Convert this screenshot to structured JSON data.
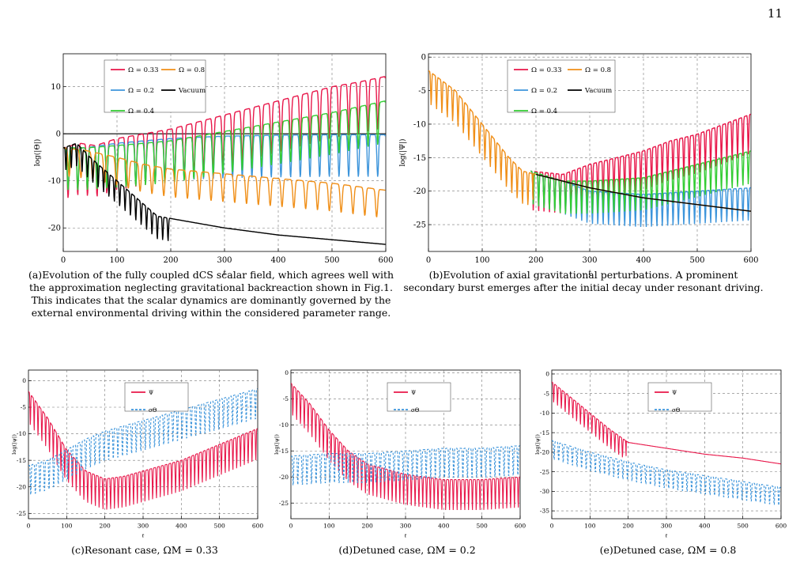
{
  "page_number": "11",
  "colors": {
    "omega_033": "#e8174a",
    "omega_02": "#3d95db",
    "omega_04": "#33cc33",
    "omega_08": "#f08f18",
    "vacuum": "#000000",
    "psi": "#e8174a",
    "sigma_theta": "#3d95db"
  },
  "captions": {
    "a": {
      "label": "(a)",
      "text": "Evolution of the fully coupled dCS scalar field, which agrees well with the approximation neglecting gravitational backreaction shown in Fig.1. This indicates that the scalar dynamics are dominantly governed by the external environmental driving within the considered parameter range."
    },
    "b": {
      "label": "(b)",
      "text": "Evolution of axial gravitational perturbations. A prominent secondary burst emerges after the initial decay under resonant driving."
    },
    "c": {
      "label": "(c)",
      "text": "Resonant case, ΩM = 0.33"
    },
    "d": {
      "label": "(d)",
      "text": "Detuned case, ΩM = 0.2"
    },
    "e": {
      "label": "(e)",
      "text": "Detuned case, ΩM = 0.8"
    }
  },
  "chart_data": [
    {
      "id": "a",
      "type": "line",
      "xlabel": "t",
      "ylabel": "log(|Θ|)",
      "xlim": [
        0,
        600
      ],
      "ylim": [
        -25,
        17
      ],
      "xticks": [
        0,
        100,
        200,
        300,
        400,
        500,
        600
      ],
      "yticks": [
        -20,
        -10,
        0,
        10
      ],
      "grid": true,
      "legend_position": "top-left",
      "hline": 0,
      "series": [
        {
          "name": "Ω = 0.33",
          "color": "omega_033",
          "osc": 11,
          "period": 18,
          "points": [
            [
              0,
              -3
            ],
            [
              30,
              -2
            ],
            [
              60,
              -2.5
            ],
            [
              100,
              -1
            ],
            [
              150,
              0
            ],
            [
              200,
              1
            ],
            [
              250,
              2.5
            ],
            [
              300,
              4
            ],
            [
              350,
              5.5
            ],
            [
              400,
              7
            ],
            [
              450,
              8.5
            ],
            [
              500,
              10
            ],
            [
              550,
              11
            ],
            [
              600,
              12.2
            ]
          ]
        },
        {
          "name": "Ω = 0.2",
          "color": "omega_02",
          "osc": 9,
          "period": 18,
          "points": [
            [
              0,
              -3
            ],
            [
              40,
              -3
            ],
            [
              100,
              -2
            ],
            [
              200,
              -1
            ],
            [
              300,
              -0.5
            ],
            [
              400,
              -0.3
            ],
            [
              500,
              -0.2
            ],
            [
              600,
              -0.2
            ]
          ]
        },
        {
          "name": "Ω = 0.4",
          "color": "omega_04",
          "osc": 9,
          "period": 18,
          "points": [
            [
              0,
              -3
            ],
            [
              40,
              -3
            ],
            [
              100,
              -2.5
            ],
            [
              200,
              -1.5
            ],
            [
              300,
              0.5
            ],
            [
              400,
              2.5
            ],
            [
              500,
              4.5
            ],
            [
              600,
              7
            ]
          ]
        },
        {
          "name": "Ω = 0.8",
          "color": "omega_08",
          "osc": 6,
          "period": 22,
          "points": [
            [
              0,
              -3
            ],
            [
              40,
              -3.5
            ],
            [
              100,
              -5
            ],
            [
              150,
              -6.5
            ],
            [
              200,
              -7.5
            ],
            [
              300,
              -8.5
            ],
            [
              400,
              -9.5
            ],
            [
              500,
              -10.5
            ],
            [
              600,
              -12
            ]
          ]
        },
        {
          "name": "Vacuum",
          "color": "vacuum",
          "osc": 5,
          "period": 10,
          "osc_until": 200,
          "points": [
            [
              0,
              -3
            ],
            [
              25,
              -2
            ],
            [
              50,
              -5
            ],
            [
              100,
              -10
            ],
            [
              150,
              -15
            ],
            [
              175,
              -17.5
            ],
            [
              200,
              -18
            ],
            [
              250,
              -19
            ],
            [
              300,
              -20
            ],
            [
              400,
              -21.5
            ],
            [
              500,
              -22.5
            ],
            [
              600,
              -23.5
            ]
          ]
        }
      ]
    },
    {
      "id": "b",
      "type": "line",
      "xlabel": "t",
      "ylabel": "log(|Ψ|)",
      "xlim": [
        0,
        600
      ],
      "ylim": [
        -29,
        0.5
      ],
      "xticks": [
        0,
        100,
        200,
        300,
        400,
        500,
        600
      ],
      "yticks": [
        -25,
        -20,
        -15,
        -10,
        -5,
        0
      ],
      "grid": true,
      "legend_position": "top-center",
      "series": [
        {
          "name": "Ω = 0.33",
          "color": "omega_033",
          "osc": 6,
          "period": 10,
          "points": [
            [
              190,
              -17
            ],
            [
              250,
              -17.5
            ],
            [
              300,
              -16
            ],
            [
              350,
              -15
            ],
            [
              400,
              -14
            ],
            [
              450,
              -12.5
            ],
            [
              500,
              -11.5
            ],
            [
              550,
              -10
            ],
            [
              600,
              -8.5
            ]
          ]
        },
        {
          "name": "Ω = 0.2",
          "color": "omega_02",
          "osc": 5,
          "period": 10,
          "points": [
            [
              190,
              -17
            ],
            [
              250,
              -18.5
            ],
            [
              300,
              -20
            ],
            [
              400,
              -20.5
            ],
            [
              500,
              -20
            ],
            [
              600,
              -19.5
            ]
          ]
        },
        {
          "name": "Ω = 0.4",
          "color": "omega_04",
          "osc": 5,
          "period": 10,
          "points": [
            [
              190,
              -17
            ],
            [
              250,
              -18.5
            ],
            [
              300,
              -18.5
            ],
            [
              400,
              -18
            ],
            [
              500,
              -16
            ],
            [
              600,
              -14
            ]
          ]
        },
        {
          "name": "Ω = 0.8",
          "color": "omega_08",
          "osc": 5,
          "period": 10,
          "osc_until": 195,
          "points": [
            [
              0,
              -2
            ],
            [
              50,
              -5
            ],
            [
              100,
              -10
            ],
            [
              150,
              -15
            ],
            [
              175,
              -17
            ],
            [
              200,
              -17.5
            ],
            [
              300,
              -19.5
            ],
            [
              400,
              -21
            ],
            [
              500,
              -22
            ],
            [
              600,
              -23
            ]
          ]
        },
        {
          "name": "Vacuum",
          "color": "vacuum",
          "osc": 0,
          "period": 10,
          "points": [
            [
              200,
              -17.5
            ],
            [
              300,
              -19.5
            ],
            [
              400,
              -21
            ],
            [
              500,
              -22
            ],
            [
              600,
              -23
            ]
          ]
        }
      ]
    },
    {
      "id": "c",
      "type": "line",
      "xlabel": "t",
      "ylabel": "log(|ψ|)",
      "xlim": [
        0,
        600
      ],
      "ylim": [
        -26,
        2
      ],
      "xticks": [
        0,
        100,
        200,
        300,
        400,
        500,
        600
      ],
      "yticks": [
        -25,
        -20,
        -15,
        -10,
        -5,
        0
      ],
      "grid": true,
      "legend_position": "top-right",
      "series": [
        {
          "name": "Ψ",
          "color": "psi",
          "osc": 6,
          "period": 10,
          "points": [
            [
              0,
              -2
            ],
            [
              50,
              -7
            ],
            [
              100,
              -13
            ],
            [
              150,
              -17
            ],
            [
              200,
              -18.5
            ],
            [
              250,
              -18
            ],
            [
              300,
              -17
            ],
            [
              350,
              -16
            ],
            [
              400,
              -15
            ],
            [
              450,
              -13.5
            ],
            [
              500,
              -12
            ],
            [
              550,
              -10.5
            ],
            [
              600,
              -9
            ]
          ]
        },
        {
          "name": "σΘ",
          "color": "sigma_theta",
          "dashed": true,
          "osc": 6,
          "period": 12,
          "points": [
            [
              0,
              -16
            ],
            [
              50,
              -15
            ],
            [
              100,
              -13
            ],
            [
              150,
              -11
            ],
            [
              200,
              -9.5
            ],
            [
              250,
              -8.5
            ],
            [
              300,
              -7.5
            ],
            [
              350,
              -6.5
            ],
            [
              400,
              -5.5
            ],
            [
              450,
              -4.5
            ],
            [
              500,
              -3.5
            ],
            [
              550,
              -2.5
            ],
            [
              600,
              -1.5
            ]
          ]
        }
      ]
    },
    {
      "id": "d",
      "type": "line",
      "xlabel": "t",
      "ylabel": "log(|ψ|)",
      "xlim": [
        0,
        600
      ],
      "ylim": [
        -28,
        0.5
      ],
      "xticks": [
        0,
        100,
        200,
        300,
        400,
        500,
        600
      ],
      "yticks": [
        -25,
        -20,
        -15,
        -10,
        -5,
        0
      ],
      "grid": true,
      "legend_position": "top-right",
      "series": [
        {
          "name": "Ψ",
          "color": "psi",
          "osc": 6,
          "period": 10,
          "points": [
            [
              0,
              -2
            ],
            [
              50,
              -6
            ],
            [
              100,
              -11
            ],
            [
              150,
              -15
            ],
            [
              200,
              -17.5
            ],
            [
              300,
              -19.5
            ],
            [
              400,
              -20.5
            ],
            [
              500,
              -20.5
            ],
            [
              600,
              -20
            ]
          ]
        },
        {
          "name": "σΘ",
          "color": "sigma_theta",
          "dashed": true,
          "osc": 6,
          "period": 12,
          "points": [
            [
              0,
              -16
            ],
            [
              100,
              -15.5
            ],
            [
              200,
              -15.5
            ],
            [
              300,
              -15
            ],
            [
              400,
              -14.5
            ],
            [
              500,
              -14.5
            ],
            [
              600,
              -14
            ]
          ]
        }
      ]
    },
    {
      "id": "e",
      "type": "line",
      "xlabel": "t",
      "ylabel": "log(|ψ|)",
      "xlim": [
        0,
        600
      ],
      "ylim": [
        -37,
        1
      ],
      "xticks": [
        0,
        100,
        200,
        300,
        400,
        500,
        600
      ],
      "yticks": [
        -35,
        -30,
        -25,
        -20,
        -15,
        -10,
        -5,
        0
      ],
      "grid": true,
      "legend_position": "top-right",
      "series": [
        {
          "name": "Ψ",
          "color": "psi",
          "osc": 5,
          "period": 10,
          "osc_until": 195,
          "points": [
            [
              0,
              -2
            ],
            [
              50,
              -6
            ],
            [
              100,
              -10
            ],
            [
              150,
              -14
            ],
            [
              200,
              -17.5
            ],
            [
              300,
              -19
            ],
            [
              400,
              -20.5
            ],
            [
              500,
              -21.5
            ],
            [
              600,
              -23
            ]
          ]
        },
        {
          "name": "σΘ",
          "color": "sigma_theta",
          "dashed": true,
          "osc": 5,
          "period": 12,
          "points": [
            [
              0,
              -17
            ],
            [
              100,
              -20
            ],
            [
              200,
              -22.5
            ],
            [
              300,
              -24.5
            ],
            [
              400,
              -26
            ],
            [
              500,
              -27.5
            ],
            [
              600,
              -29
            ]
          ]
        }
      ]
    }
  ]
}
